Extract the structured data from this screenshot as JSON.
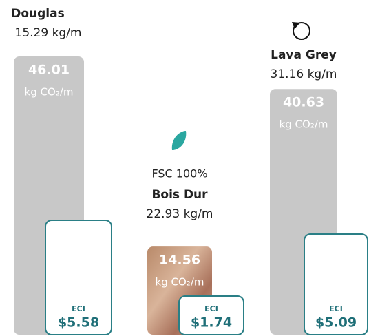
{
  "items": [
    {
      "name": "Douglas",
      "weight": "15.29 kg/m",
      "co2": 46.01,
      "co2_unit": "kg CO₂/m",
      "eci_label": "ECI",
      "eci": "$5.58"
    },
    {
      "note": "FSC 100%",
      "name": "Bois Dur",
      "weight": "22.93 kg/m",
      "co2": 14.56,
      "co2_unit": "kg CO₂/m",
      "eci_label": "ECI",
      "eci": "$1.74"
    },
    {
      "name": "Lava Grey",
      "weight": "31.16 kg/m",
      "co2": 40.63,
      "co2_unit": "kg CO₂/m",
      "eci_label": "ECI",
      "eci": "$5.09"
    }
  ]
}
